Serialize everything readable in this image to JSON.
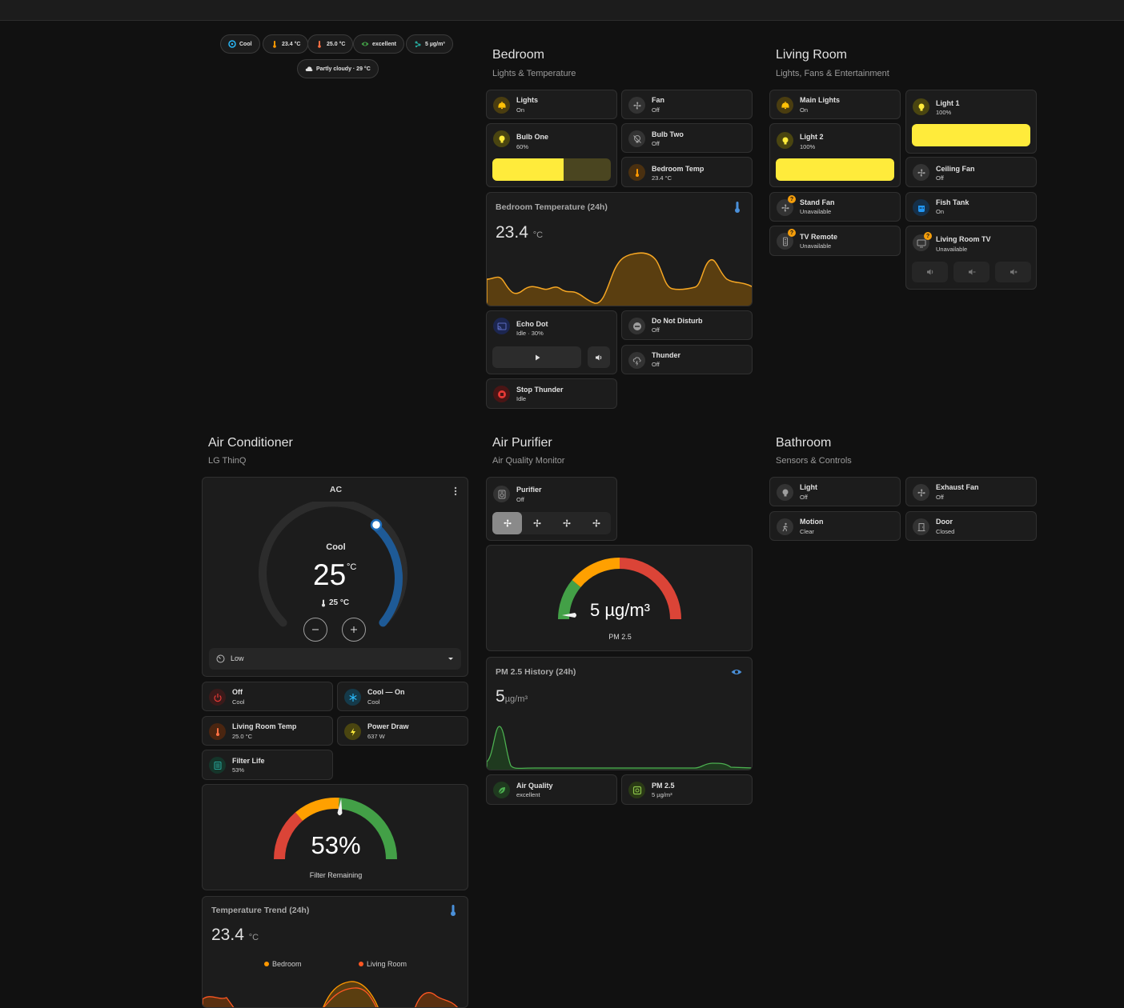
{
  "chips": [
    {
      "label": "Cool",
      "icon": "thermostat-icon"
    },
    {
      "label": "23.4 °C",
      "icon": "thermometer-icon"
    },
    {
      "label": "25.0 °C",
      "icon": "thermometer-icon"
    },
    {
      "label": "excellent",
      "icon": "eye-icon"
    },
    {
      "label": "5 µg/m³",
      "icon": "molecule-icon"
    }
  ],
  "weather_chip": {
    "label": "Partly cloudy · 29 °C",
    "icon": "cloud-icon"
  },
  "bedroom": {
    "title": "Bedroom",
    "subtitle": "Lights & Temperature",
    "tiles": {
      "lights": {
        "name": "Lights",
        "state": "On"
      },
      "fan": {
        "name": "Fan",
        "state": "Off"
      },
      "bulb_one": {
        "name": "Bulb One",
        "state": "60%",
        "brightness": 0.6
      },
      "bulb_two": {
        "name": "Bulb Two",
        "state": "Off"
      },
      "bedroom_temp": {
        "name": "Bedroom Temp",
        "state": "23.4 °C"
      },
      "echo_dot": {
        "name": "Echo Dot",
        "state": "Idle · 30%"
      },
      "dnd": {
        "name": "Do Not Disturb",
        "state": "Off"
      },
      "thunder": {
        "name": "Thunder",
        "state": "Off"
      },
      "stop_thunder": {
        "name": "Stop Thunder",
        "state": "Idle"
      }
    },
    "graph": {
      "title": "Bedroom Temperature (24h)",
      "value": "23.4",
      "unit": "°C"
    }
  },
  "living_room": {
    "title": "Living Room",
    "subtitle": "Lights, Fans & Entertainment",
    "tiles": {
      "main_lights": {
        "name": "Main Lights",
        "state": "On"
      },
      "light1": {
        "name": "Light 1",
        "state": "100%",
        "brightness": 1.0
      },
      "light2": {
        "name": "Light 2",
        "state": "100%",
        "brightness": 1.0
      },
      "ceiling_fan": {
        "name": "Ceiling Fan",
        "state": "Off"
      },
      "stand_fan": {
        "name": "Stand Fan",
        "state": "Unavailable"
      },
      "fish_tank": {
        "name": "Fish Tank",
        "state": "On"
      },
      "tv_remote": {
        "name": "TV Remote",
        "state": "Unavailable"
      },
      "living_tv": {
        "name": "Living Room TV",
        "state": "Unavailable"
      }
    },
    "badge": "?"
  },
  "air_conditioner": {
    "title": "Air Conditioner",
    "subtitle": "LG ThinQ",
    "thermostat": {
      "name": "AC",
      "mode": "Cool",
      "target": "25",
      "target_unit": "°C",
      "current": "25 °C",
      "fan_mode": "Low"
    },
    "tiles": {
      "off": {
        "name": "Off",
        "state": "Cool"
      },
      "cool_on": {
        "name": "Cool — On",
        "state": "Cool"
      },
      "living_temp": {
        "name": "Living Room Temp",
        "state": "25.0 °C"
      },
      "power_draw": {
        "name": "Power Draw",
        "state": "637 W"
      },
      "filter_life": {
        "name": "Filter Life",
        "state": "53%"
      }
    },
    "filter_gauge": {
      "value": "53%",
      "label": "Filter Remaining",
      "fraction": 0.53
    },
    "trend": {
      "title": "Temperature Trend (24h)",
      "value": "23.4",
      "unit": "°C",
      "legend": [
        "Bedroom",
        "Living Room"
      ]
    }
  },
  "air_purifier": {
    "title": "Air Purifier",
    "subtitle": "Air Quality Monitor",
    "purifier": {
      "name": "Purifier",
      "state": "Off"
    },
    "pm_gauge": {
      "value": "5 µg/m³",
      "label": "PM 2.5",
      "value_num": 5
    },
    "history": {
      "title": "PM 2.5 History (24h)",
      "value": "5",
      "unit": "µg/m³"
    },
    "tiles": {
      "air_quality": {
        "name": "Air Quality",
        "state": "excellent"
      },
      "pm25": {
        "name": "PM 2.5",
        "state": "5 µg/m³"
      }
    }
  },
  "bathroom": {
    "title": "Bathroom",
    "subtitle": "Sensors & Controls",
    "tiles": {
      "light": {
        "name": "Light",
        "state": "Off"
      },
      "exhaust_fan": {
        "name": "Exhaust Fan",
        "state": "Off"
      },
      "motion": {
        "name": "Motion",
        "state": "Clear"
      },
      "door": {
        "name": "Door",
        "state": "Closed"
      }
    }
  },
  "colors": {
    "yellow": "#ffeb3b",
    "amber": "#ff9800",
    "red": "#db4437",
    "green": "#43a047",
    "blue": "#1e5a96",
    "bg": "#111111",
    "card": "#1c1c1c"
  }
}
